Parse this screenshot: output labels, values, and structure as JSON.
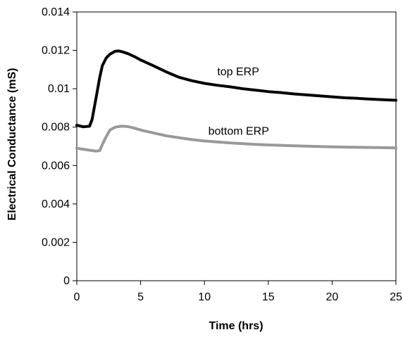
{
  "chart_data": {
    "type": "line",
    "title": "",
    "xlabel": "Time (hrs)",
    "ylabel": "Electrical Conductance (mS)",
    "xlim": [
      0,
      25
    ],
    "ylim": [
      0,
      0.014
    ],
    "xticks": [
      0,
      5,
      10,
      15,
      20,
      25
    ],
    "yticks": [
      0,
      0.002,
      0.004,
      0.006,
      0.008,
      0.01,
      0.012,
      0.014
    ],
    "xtick_labels": [
      "0",
      "5",
      "10",
      "15",
      "20",
      "25"
    ],
    "ytick_labels": [
      "0",
      "0.002",
      "0.004",
      "0.006",
      "0.008",
      "0.01",
      "0.012",
      "0.014"
    ],
    "grid": false,
    "legend": "none",
    "series": [
      {
        "name": "top ERP",
        "color": "#000000",
        "x": [
          0,
          0.5,
          1.0,
          1.2,
          1.5,
          1.8,
          2.0,
          2.3,
          2.6,
          3.0,
          3.3,
          3.6,
          4.0,
          4.5,
          5,
          6,
          7,
          8,
          9,
          10,
          11,
          12,
          13,
          14,
          15,
          16,
          17,
          18,
          19,
          20,
          21,
          22,
          23,
          24,
          25
        ],
        "y": [
          0.0081,
          0.00802,
          0.00805,
          0.0084,
          0.0095,
          0.0106,
          0.0112,
          0.0116,
          0.0118,
          0.01195,
          0.01197,
          0.01192,
          0.01183,
          0.01168,
          0.0115,
          0.0112,
          0.01088,
          0.0106,
          0.01042,
          0.01028,
          0.01018,
          0.0101,
          0.01,
          0.00993,
          0.00985,
          0.0098,
          0.00973,
          0.00968,
          0.00963,
          0.00958,
          0.00953,
          0.0095,
          0.00946,
          0.00943,
          0.0094
        ]
      },
      {
        "name": "bottom ERP",
        "color": "#999999",
        "x": [
          0,
          0.5,
          1.0,
          1.5,
          1.8,
          2.0,
          2.3,
          2.6,
          3.0,
          3.5,
          4.0,
          4.5,
          5,
          6,
          7,
          8,
          9,
          10,
          12,
          14,
          16,
          18,
          20,
          22,
          24,
          25
        ],
        "y": [
          0.0069,
          0.00685,
          0.0068,
          0.00675,
          0.00678,
          0.0071,
          0.0075,
          0.00785,
          0.008,
          0.00805,
          0.00803,
          0.00795,
          0.00785,
          0.0077,
          0.00755,
          0.00745,
          0.00735,
          0.00728,
          0.00718,
          0.0071,
          0.00705,
          0.00701,
          0.00697,
          0.00695,
          0.00693,
          0.00692
        ]
      }
    ]
  }
}
